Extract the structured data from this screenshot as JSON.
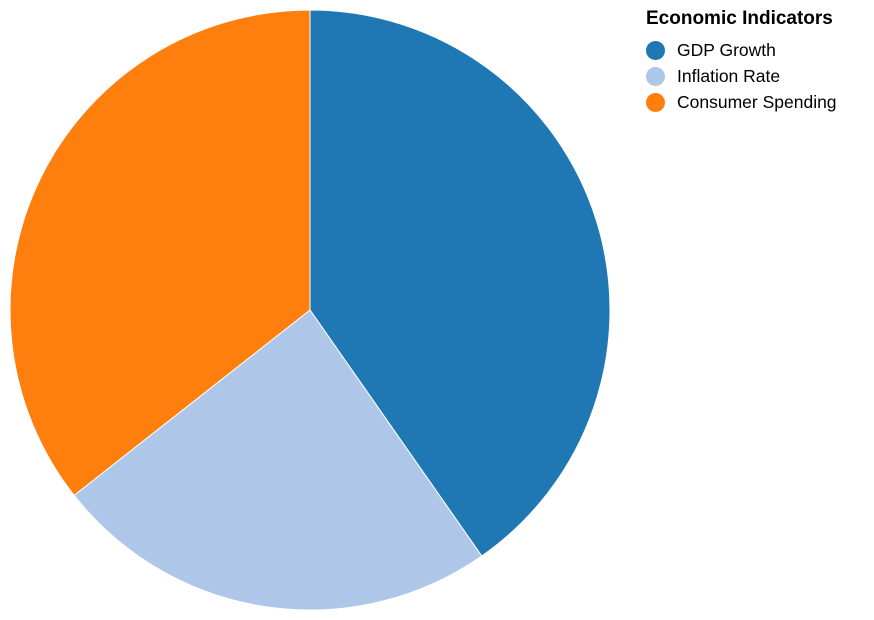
{
  "chart_data": {
    "type": "pie",
    "legend_title": "Economic Indicators",
    "legend_placement": "top-right",
    "categories": [
      "GDP Growth",
      "Inflation Rate",
      "Consumer Spending"
    ],
    "values": [
      40.3,
      24.1,
      35.6
    ],
    "colors": [
      "#1f77b4",
      "#aec7e8",
      "#ff7f0e"
    ],
    "start_angle": "top",
    "direction": "clockwise"
  }
}
